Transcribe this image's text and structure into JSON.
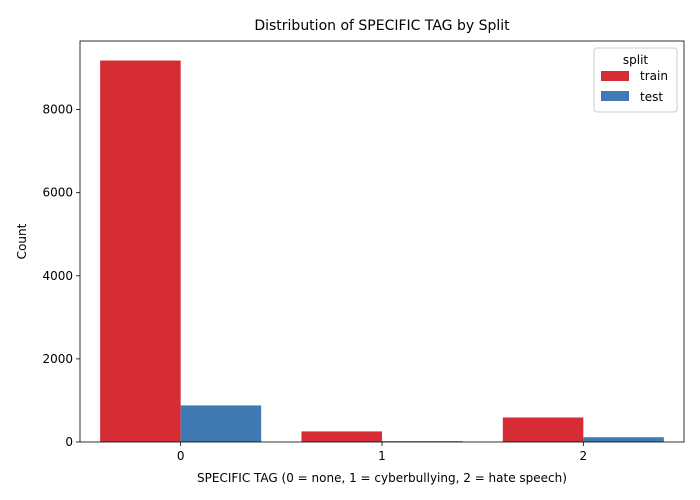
{
  "chart_data": {
    "type": "bar",
    "title": "Distribution of SPECIFIC TAG by Split",
    "xlabel": "SPECIFIC TAG (0 = none, 1 = cyberbullying, 2 = hate speech)",
    "ylabel": "Count",
    "categories": [
      "0",
      "1",
      "2"
    ],
    "series": [
      {
        "name": "train",
        "color": "#d62d34",
        "values": [
          9180,
          255,
          590
        ]
      },
      {
        "name": "test",
        "color": "#3f7ab5",
        "values": [
          880,
          20,
          115
        ]
      }
    ],
    "ylim": [
      0,
      9650
    ],
    "yticks": [
      0,
      2000,
      4000,
      6000,
      8000
    ],
    "grid": false,
    "legend": {
      "title": "split",
      "position": "top-right"
    }
  }
}
